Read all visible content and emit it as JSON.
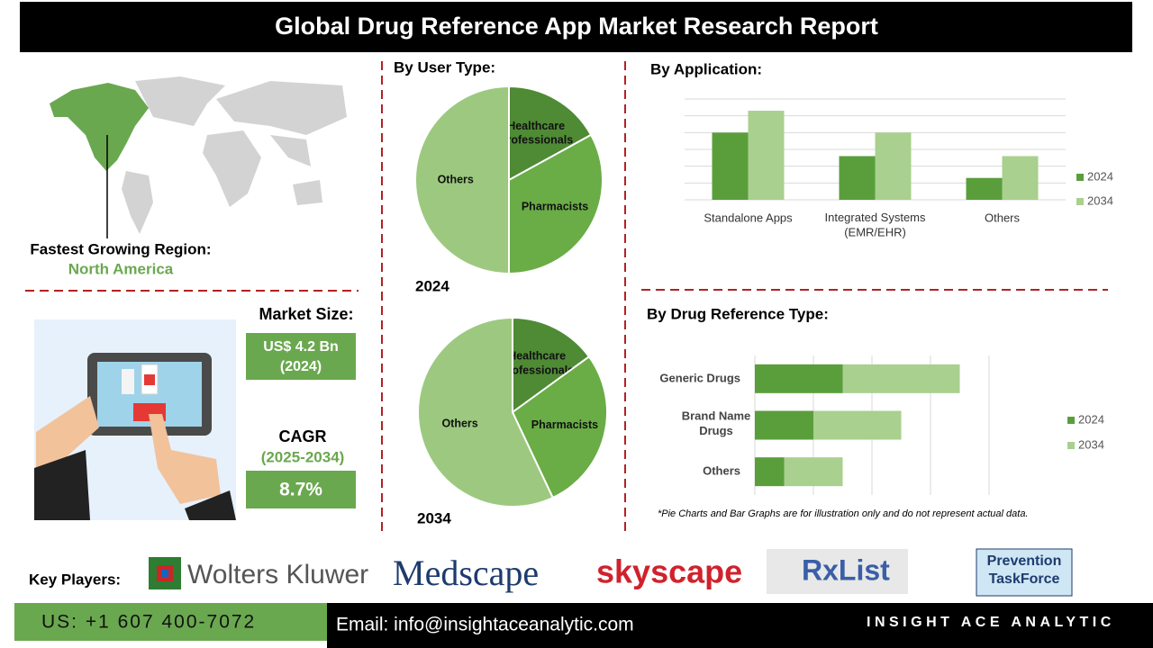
{
  "title": "Global Drug Reference App Market Research Report",
  "region": {
    "label": "Fastest Growing Region:",
    "value": "North America"
  },
  "market_size": {
    "label": "Market Size:",
    "value": "US$ 4.2 Bn",
    "year": "(2024)"
  },
  "cagr": {
    "label": "CAGR",
    "period": "(2025-2034)",
    "value": "8.7%"
  },
  "user_type_title": "By User Type:",
  "chart_data": [
    {
      "type": "pie",
      "title": "2024",
      "categories": [
        "Healthcare Professionals",
        "Pharmacists",
        "Others"
      ],
      "values": [
        17,
        33,
        50
      ],
      "colors": [
        "#4f8a35",
        "#6aac46",
        "#9cc97f"
      ]
    },
    {
      "type": "pie",
      "title": "2034",
      "categories": [
        "Healthcare Professionals",
        "Pharmacists",
        "Others"
      ],
      "values": [
        15,
        28,
        57
      ],
      "colors": [
        "#4f8a35",
        "#6aac46",
        "#9cc97f"
      ]
    },
    {
      "type": "bar",
      "title": "By  Application:",
      "categories": [
        "Standalone Apps",
        "Integrated Systems (EMR/EHR)",
        "Others"
      ],
      "series": [
        {
          "name": "2024",
          "color": "#5a9e3c",
          "values": [
            4,
            2.6,
            1.3
          ]
        },
        {
          "name": "2034",
          "color": "#a9d08e",
          "values": [
            5.3,
            4,
            2.6
          ]
        }
      ],
      "ylim": [
        0,
        6
      ],
      "grid": true
    },
    {
      "type": "hbar-stacked",
      "title": "By Drug Reference Type:",
      "categories": [
        "Generic Drugs",
        "Brand Name Drugs",
        "Others"
      ],
      "series": [
        {
          "name": "2024",
          "color": "#5a9e3c",
          "values": [
            1.5,
            1,
            0.5
          ]
        },
        {
          "name": "2034",
          "color": "#a9d08e",
          "values": [
            2,
            1.5,
            1
          ]
        }
      ],
      "xlim": [
        0,
        4
      ],
      "grid": true
    }
  ],
  "footnote": "*Pie Charts and Bar Graphs are for illustration only and do not represent actual data.",
  "key_players": {
    "label": "Key Players:",
    "names": [
      "Wolters Kluwer",
      "Medscape",
      "skyscape",
      "RxList",
      "Prevention TaskForce"
    ]
  },
  "footer": {
    "phone": "US: +1 607 400-7072",
    "email": "Email: info@insightaceanalytic.com",
    "brand": "INSIGHT ACE ANALYTIC"
  }
}
